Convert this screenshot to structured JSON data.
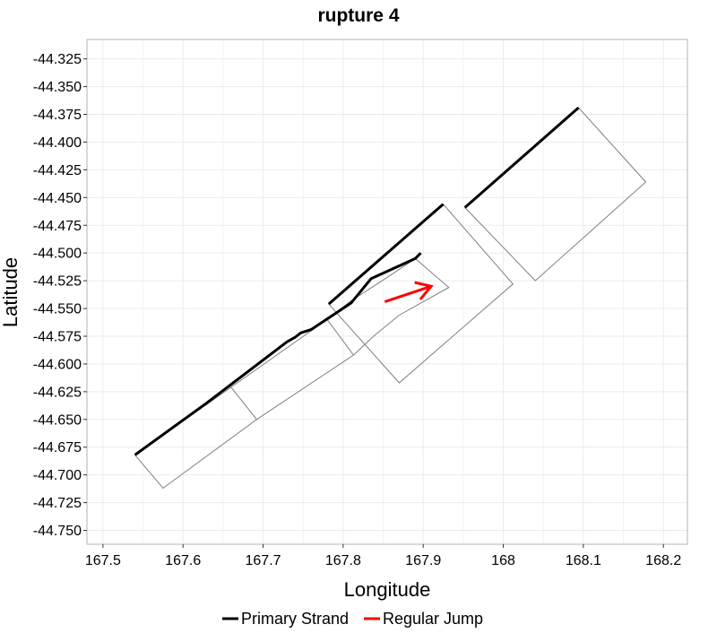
{
  "chart_data": {
    "type": "line",
    "title": "rupture 4",
    "xlabel": "Longitude",
    "ylabel": "Latitude",
    "xlim": [
      167.48,
      168.23
    ],
    "ylim": [
      -44.7625,
      -44.3075
    ],
    "grid": true,
    "legend_position": "bottom",
    "x_ticks": [
      167.5,
      167.6,
      167.7,
      167.8,
      167.9,
      168,
      168.1,
      168.2
    ],
    "x_tick_labels": [
      "167.5",
      "167.6",
      "167.7",
      "167.8",
      "167.9",
      "168",
      "168.1",
      "168.2"
    ],
    "y_ticks": [
      -44.325,
      -44.35,
      -44.375,
      -44.4,
      -44.425,
      -44.45,
      -44.475,
      -44.5,
      -44.525,
      -44.55,
      -44.575,
      -44.6,
      -44.625,
      -44.65,
      -44.675,
      -44.7,
      -44.725,
      -44.75
    ],
    "y_tick_labels": [
      "-44.325",
      "-44.350",
      "-44.375",
      "-44.400",
      "-44.425",
      "-44.450",
      "-44.475",
      "-44.500",
      "-44.525",
      "-44.550",
      "-44.575",
      "-44.600",
      "-44.625",
      "-44.650",
      "-44.675",
      "-44.700",
      "-44.725",
      "-44.750"
    ],
    "fault_outlines": [
      {
        "points": [
          [
            167.54,
            -44.682
          ],
          [
            167.66,
            -44.621
          ],
          [
            167.692,
            -44.65
          ],
          [
            167.575,
            -44.712
          ],
          [
            167.54,
            -44.682
          ]
        ]
      },
      {
        "points": [
          [
            167.66,
            -44.621
          ],
          [
            167.78,
            -44.56
          ],
          [
            167.813,
            -44.592
          ],
          [
            167.692,
            -44.65
          ]
        ]
      },
      {
        "points": [
          [
            167.78,
            -44.56
          ],
          [
            167.81,
            -44.543
          ],
          [
            167.855,
            -44.522
          ],
          [
            167.89,
            -44.505
          ],
          [
            167.932,
            -44.531
          ],
          [
            167.87,
            -44.556
          ],
          [
            167.838,
            -44.575
          ],
          [
            167.813,
            -44.592
          ]
        ]
      },
      {
        "points": [
          [
            167.782,
            -44.546
          ],
          [
            167.925,
            -44.456
          ],
          [
            168.012,
            -44.528
          ],
          [
            167.87,
            -44.617
          ],
          [
            167.782,
            -44.546
          ]
        ]
      },
      {
        "points": [
          [
            167.952,
            -44.459
          ],
          [
            168.094,
            -44.369
          ],
          [
            168.178,
            -44.436
          ],
          [
            168.04,
            -44.525
          ],
          [
            167.952,
            -44.459
          ]
        ]
      }
    ],
    "series": [
      {
        "name": "Primary Strand",
        "color": "#000000",
        "segments": [
          [
            [
              167.54,
              -44.682
            ],
            [
              167.63,
              -44.635
            ],
            [
              167.73,
              -44.58
            ],
            [
              167.74,
              -44.576
            ],
            [
              167.747,
              -44.572
            ],
            [
              167.76,
              -44.569
            ],
            [
              167.81,
              -44.545
            ],
            [
              167.835,
              -44.523
            ],
            [
              167.89,
              -44.505
            ],
            [
              167.897,
              -44.5
            ]
          ],
          [
            [
              167.782,
              -44.546
            ],
            [
              167.925,
              -44.456
            ]
          ],
          [
            [
              167.952,
              -44.459
            ],
            [
              168.094,
              -44.369
            ]
          ]
        ]
      },
      {
        "name": "Regular Jump",
        "color": "#ff0000",
        "arrow": true,
        "segments": [
          [
            [
              167.852,
              -44.544
            ],
            [
              167.91,
              -44.53
            ]
          ]
        ]
      }
    ]
  }
}
